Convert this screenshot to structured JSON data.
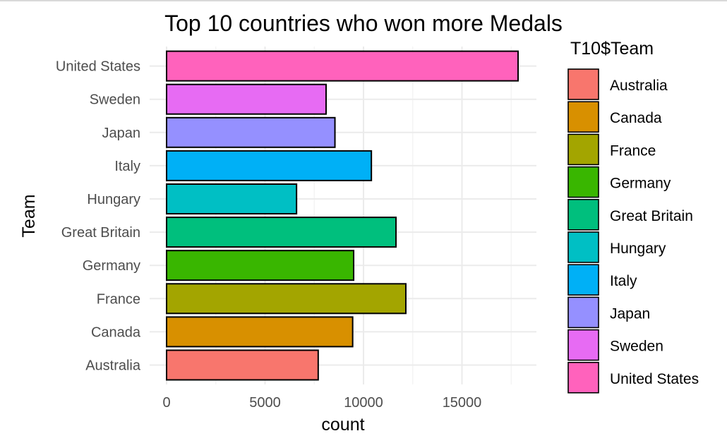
{
  "chart_data": {
    "type": "bar",
    "orientation": "horizontal",
    "title": "Top 10 countries who won more Medals",
    "xlabel": "count",
    "ylabel": "Team",
    "xlim": [
      0,
      18800
    ],
    "x_ticks": [
      0,
      5000,
      10000,
      15000
    ],
    "x_tick_labels": [
      "0",
      "5000",
      "10000",
      "15000"
    ],
    "grid": true,
    "legend_position": "right",
    "legend_title": "T10$Team",
    "categories": [
      "Australia",
      "Canada",
      "France",
      "Germany",
      "Great Britain",
      "Hungary",
      "Italy",
      "Japan",
      "Sweden",
      "United States"
    ],
    "values": [
      7700,
      9450,
      12150,
      9500,
      11650,
      6600,
      10400,
      8550,
      8100,
      17850
    ],
    "colors": [
      "#F8766D",
      "#D89000",
      "#A3A500",
      "#39B600",
      "#00BF7D",
      "#00BFC4",
      "#00B0F6",
      "#9590FF",
      "#E76BF3",
      "#FF62BC"
    ],
    "bar_outline_color": "#000000"
  }
}
